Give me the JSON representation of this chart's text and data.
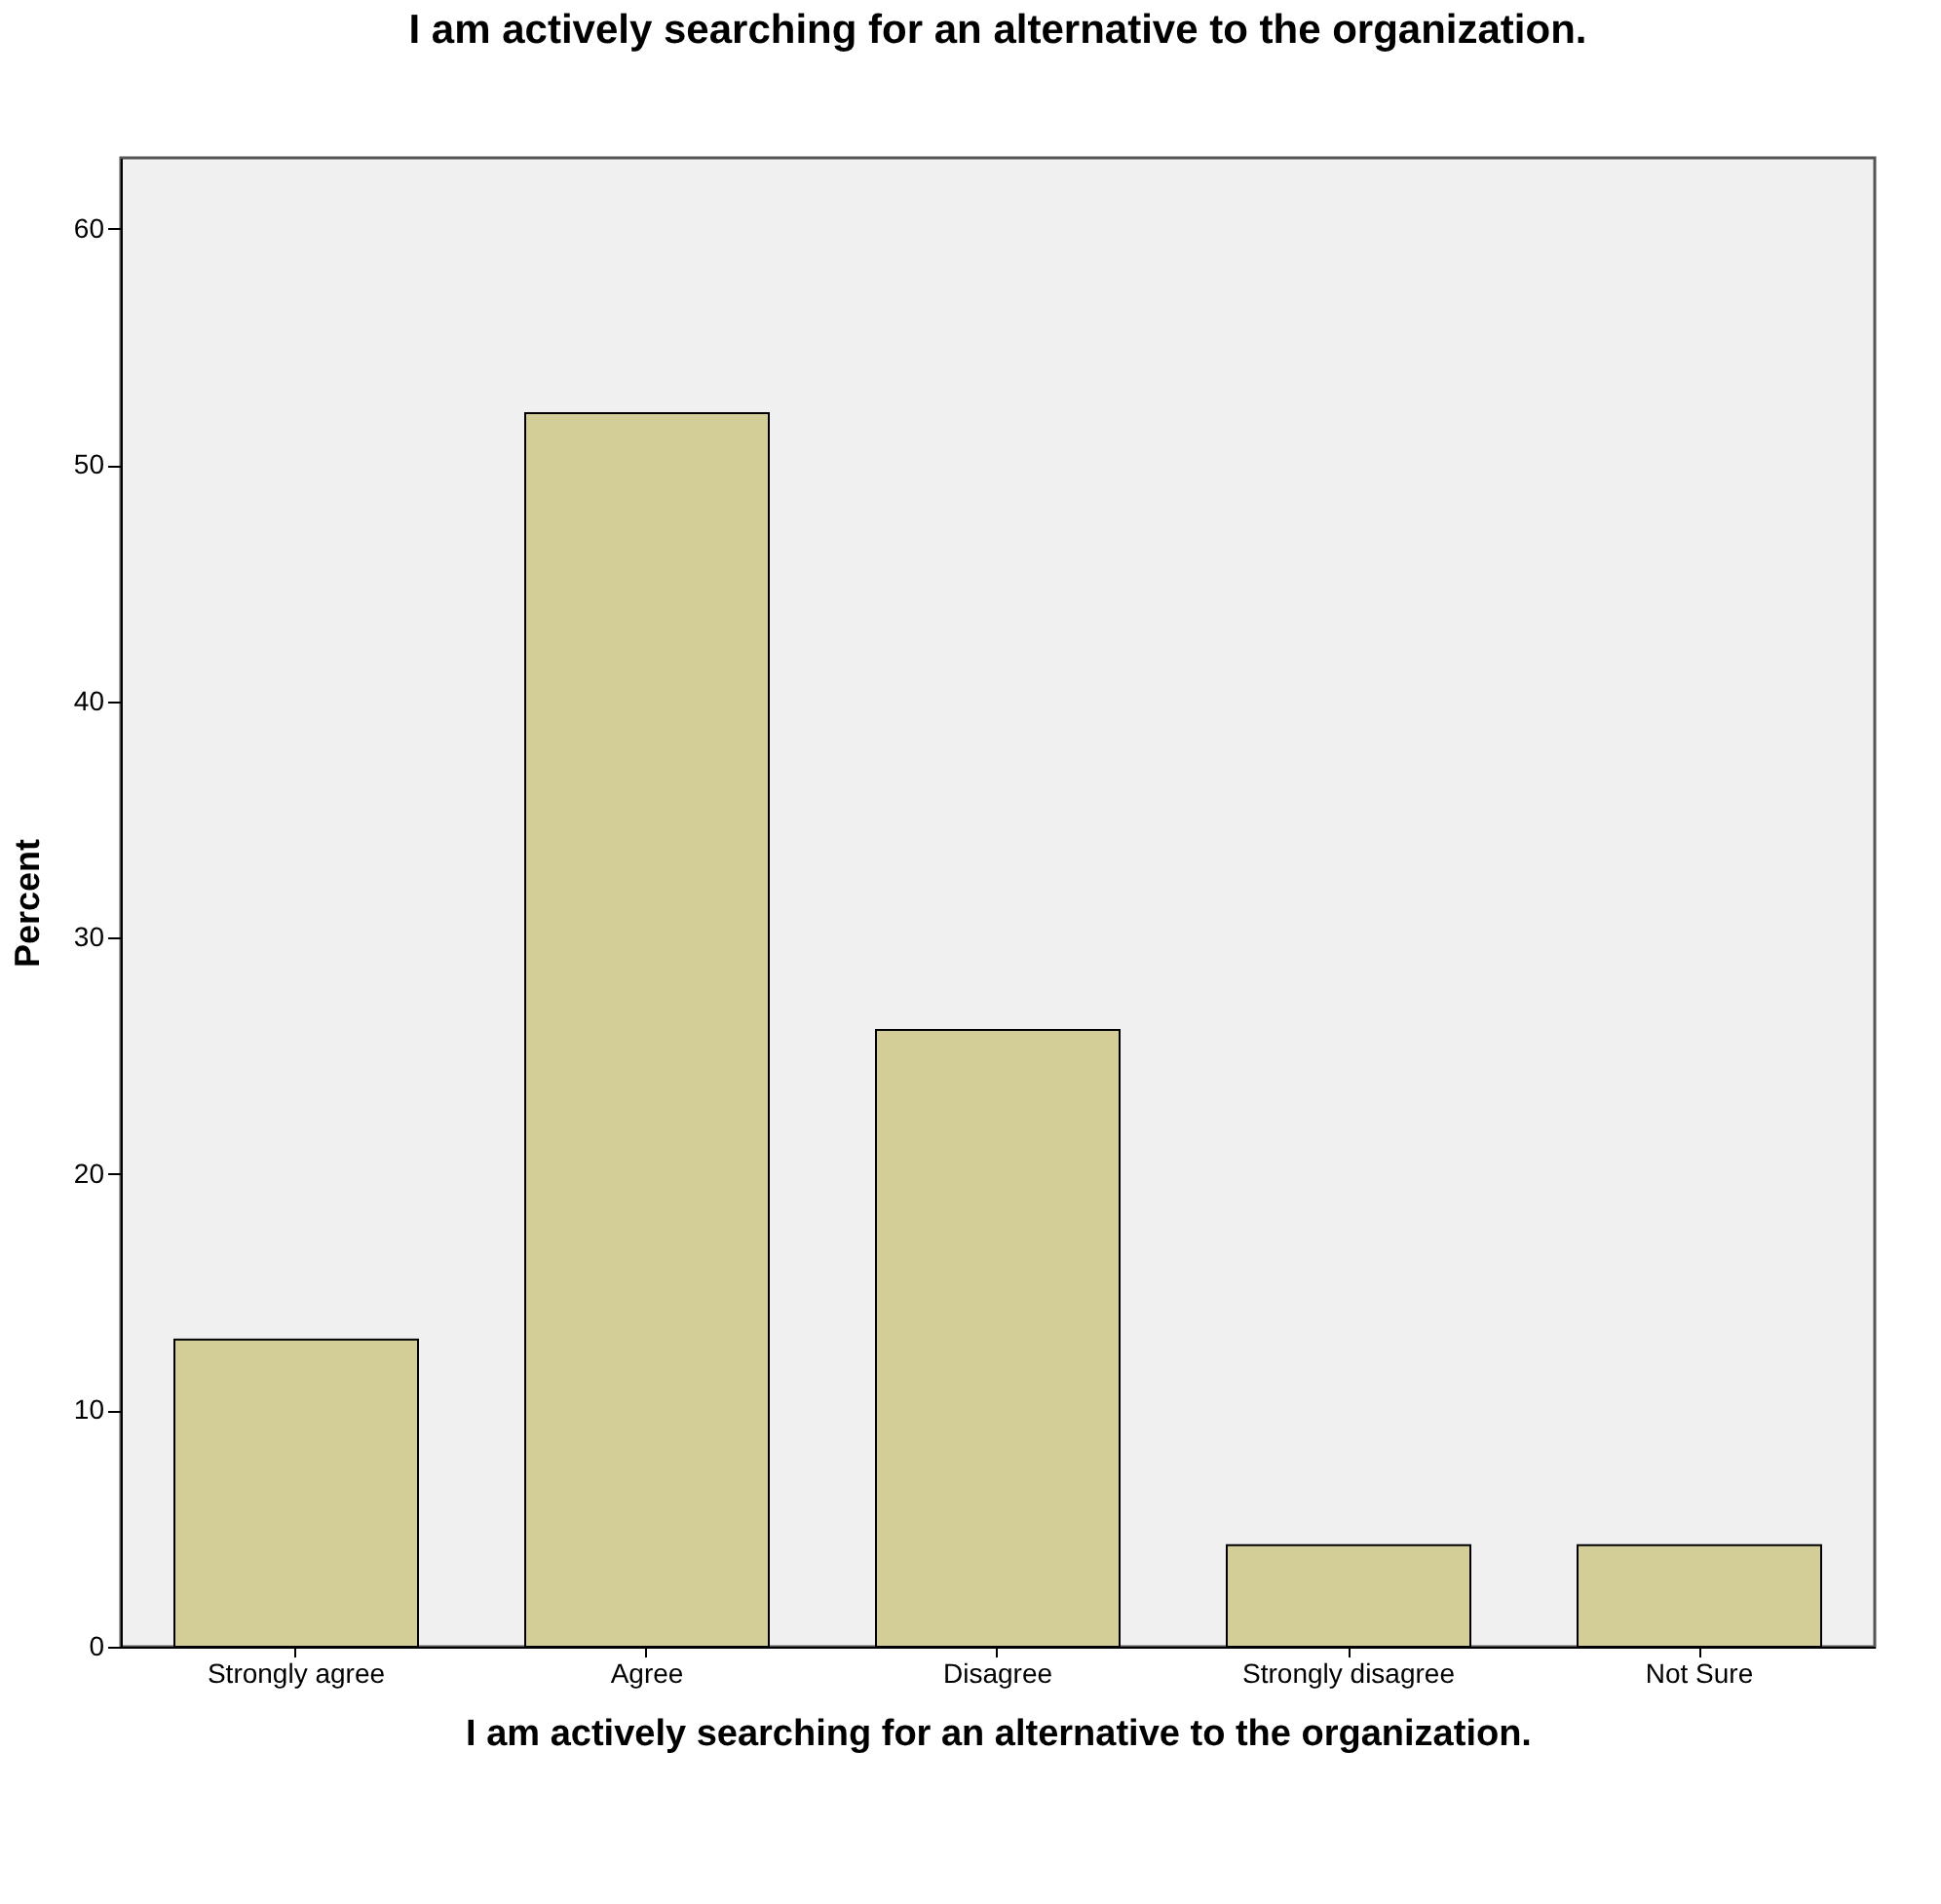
{
  "chart_data": {
    "type": "bar",
    "title": "I am actively searching for an alternative to the organization.",
    "xlabel": "I am actively searching for an alternative to the organization.",
    "ylabel": "Percent",
    "categories": [
      "Strongly agree",
      "Agree",
      "Disagree",
      "Strongly disagree",
      "Not Sure"
    ],
    "values": [
      13.0,
      52.2,
      26.1,
      4.3,
      4.3
    ],
    "color": "#d3ce97",
    "ylim": [
      0,
      63
    ],
    "yticks": [
      0,
      10,
      20,
      30,
      40,
      50,
      60
    ],
    "grid": false
  }
}
